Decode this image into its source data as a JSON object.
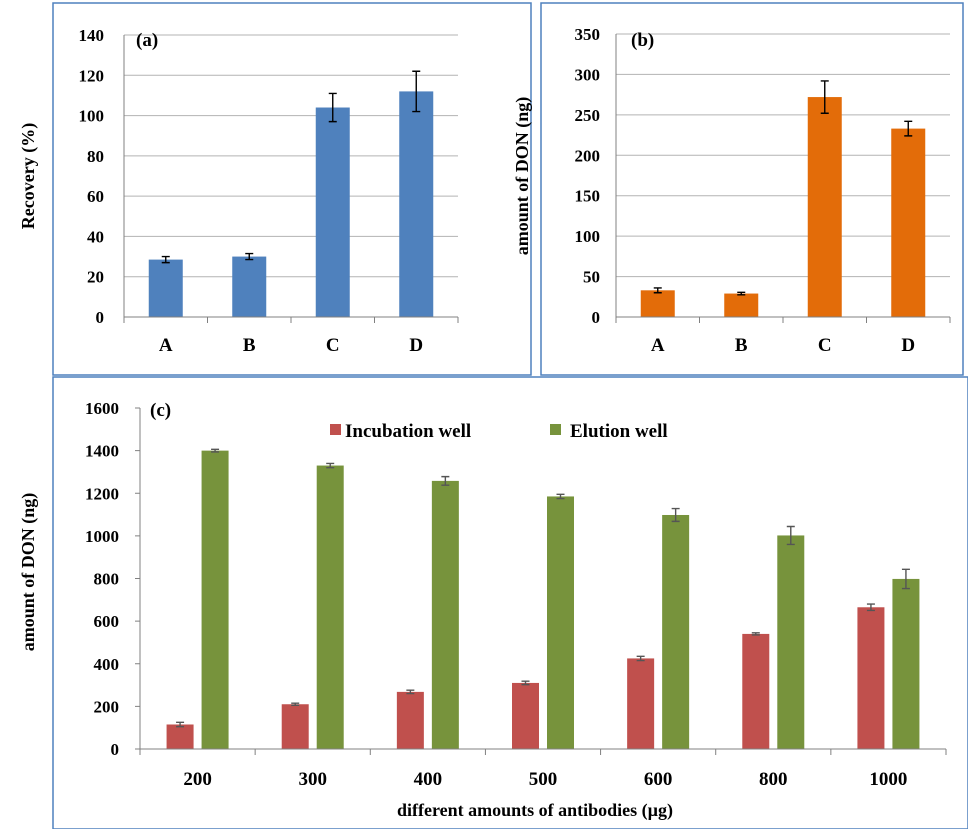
{
  "chart_data": [
    {
      "id": "a",
      "type": "bar",
      "panel_label": "(a)",
      "title": "",
      "xlabel": "",
      "ylabel": "Recovery (%)",
      "ylim": [
        0,
        140
      ],
      "yticks": [
        0,
        20,
        40,
        60,
        80,
        100,
        120,
        140
      ],
      "grid": true,
      "categories": [
        "A",
        "B",
        "C",
        "D"
      ],
      "series": [
        {
          "values": [
            28.5,
            30,
            104,
            112
          ],
          "errors": [
            1.5,
            1.5,
            7,
            10
          ],
          "color": "#4f81bd"
        }
      ]
    },
    {
      "id": "b",
      "type": "bar",
      "panel_label": "(b)",
      "title": "",
      "xlabel": "",
      "ylabel": "amount of DON (ng)",
      "ylim": [
        0,
        350
      ],
      "yticks": [
        0,
        50,
        100,
        150,
        200,
        250,
        300,
        350
      ],
      "grid": true,
      "categories": [
        "A",
        "B",
        "C",
        "D"
      ],
      "series": [
        {
          "values": [
            33,
            29,
            272,
            233
          ],
          "errors": [
            3,
            1.5,
            20,
            9
          ],
          "color": "#e36c09"
        }
      ]
    },
    {
      "id": "c",
      "type": "bar",
      "panel_label": "(c)",
      "title": "",
      "xlabel": "different amounts of antibodies (µg)",
      "ylabel": "amount of DON (ng)",
      "ylim": [
        0,
        1600
      ],
      "yticks": [
        0,
        200,
        400,
        600,
        800,
        1000,
        1200,
        1400,
        1600
      ],
      "grid": false,
      "legend_position": "top",
      "categories": [
        "200",
        "300",
        "400",
        "500",
        "600",
        "800",
        "1000"
      ],
      "series": [
        {
          "name": "Incubation well",
          "values": [
            115,
            210,
            268,
            310,
            425,
            540,
            665
          ],
          "errors": [
            10,
            5,
            8,
            8,
            10,
            5,
            15
          ],
          "color": "#c0504d"
        },
        {
          "name": "Elution well",
          "values": [
            1400,
            1330,
            1258,
            1185,
            1098,
            1002,
            798
          ],
          "errors": [
            6,
            10,
            20,
            10,
            30,
            42,
            45
          ],
          "color": "#77933c"
        }
      ]
    }
  ]
}
